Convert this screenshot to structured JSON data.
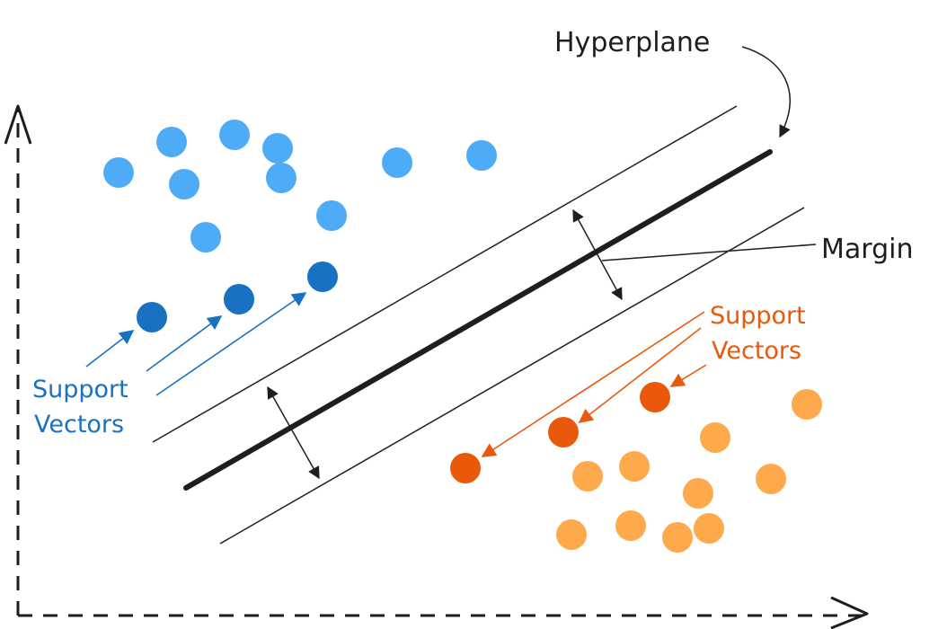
{
  "labels": {
    "hyperplane": "Hyperplane",
    "margin": "Margin",
    "support_vectors_left": [
      "Support",
      "Vectors"
    ],
    "support_vectors_right": [
      "Support",
      "Vectors"
    ]
  },
  "colors": {
    "blue_point": "#4dabf7",
    "blue_support": "#1971c2",
    "orange_point": "#ffa94d",
    "orange_support": "#e8590c",
    "ink": "#1e1e1e"
  }
}
